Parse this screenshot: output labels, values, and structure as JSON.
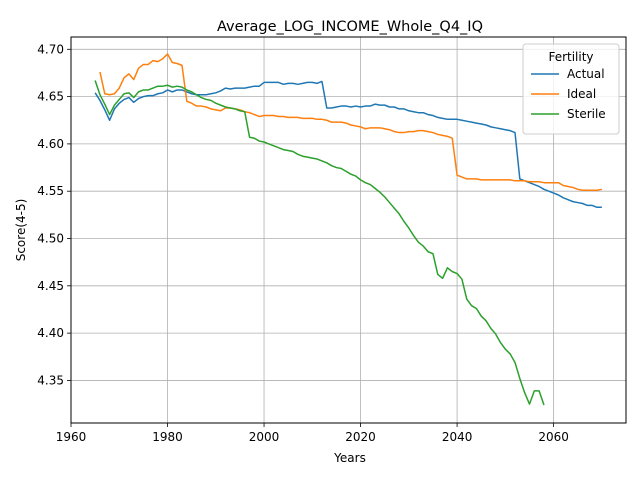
{
  "chart_data": {
    "type": "line",
    "title": "Average_LOG_INCOME_Whole_Q4_IQ",
    "xlabel": "Years",
    "ylabel": "Score(4-5)",
    "xlim": [
      1960,
      2075
    ],
    "ylim": [
      4.305,
      4.713
    ],
    "xticks": [
      1960,
      1980,
      2000,
      2020,
      2040,
      2060
    ],
    "yticks": [
      4.35,
      4.4,
      4.45,
      4.5,
      4.55,
      4.6,
      4.65,
      4.7
    ],
    "grid": true,
    "legend": {
      "title": "Fertility",
      "position": "top-right"
    },
    "series": [
      {
        "name": "Actual",
        "color": "#1f77b4",
        "points": [
          [
            1965,
            4.654
          ],
          [
            1966,
            4.646
          ],
          [
            1967,
            4.636
          ],
          [
            1968,
            4.625
          ],
          [
            1969,
            4.637
          ],
          [
            1970,
            4.643
          ],
          [
            1971,
            4.647
          ],
          [
            1972,
            4.649
          ],
          [
            1973,
            4.644
          ],
          [
            1974,
            4.648
          ],
          [
            1975,
            4.65
          ],
          [
            1976,
            4.651
          ],
          [
            1977,
            4.651
          ],
          [
            1978,
            4.653
          ],
          [
            1979,
            4.654
          ],
          [
            1980,
            4.657
          ],
          [
            1981,
            4.655
          ],
          [
            1982,
            4.657
          ],
          [
            1983,
            4.657
          ],
          [
            1984,
            4.655
          ],
          [
            1985,
            4.653
          ],
          [
            1986,
            4.652
          ],
          [
            1987,
            4.652
          ],
          [
            1988,
            4.652
          ],
          [
            1989,
            4.653
          ],
          [
            1990,
            4.654
          ],
          [
            1991,
            4.656
          ],
          [
            1992,
            4.659
          ],
          [
            1993,
            4.658
          ],
          [
            1994,
            4.659
          ],
          [
            1995,
            4.659
          ],
          [
            1996,
            4.659
          ],
          [
            1997,
            4.66
          ],
          [
            1998,
            4.661
          ],
          [
            1999,
            4.661
          ],
          [
            2000,
            4.665
          ],
          [
            2001,
            4.665
          ],
          [
            2002,
            4.665
          ],
          [
            2003,
            4.665
          ],
          [
            2004,
            4.663
          ],
          [
            2005,
            4.664
          ],
          [
            2006,
            4.664
          ],
          [
            2007,
            4.663
          ],
          [
            2008,
            4.664
          ],
          [
            2009,
            4.665
          ],
          [
            2010,
            4.665
          ],
          [
            2011,
            4.664
          ],
          [
            2012,
            4.666
          ],
          [
            2013,
            4.638
          ],
          [
            2014,
            4.638
          ],
          [
            2015,
            4.639
          ],
          [
            2016,
            4.64
          ],
          [
            2017,
            4.64
          ],
          [
            2018,
            4.639
          ],
          [
            2019,
            4.64
          ],
          [
            2020,
            4.639
          ],
          [
            2021,
            4.64
          ],
          [
            2022,
            4.64
          ],
          [
            2023,
            4.642
          ],
          [
            2024,
            4.641
          ],
          [
            2025,
            4.641
          ],
          [
            2026,
            4.639
          ],
          [
            2027,
            4.639
          ],
          [
            2028,
            4.637
          ],
          [
            2029,
            4.637
          ],
          [
            2030,
            4.635
          ],
          [
            2031,
            4.634
          ],
          [
            2032,
            4.633
          ],
          [
            2033,
            4.633
          ],
          [
            2034,
            4.631
          ],
          [
            2035,
            4.63
          ],
          [
            2036,
            4.628
          ],
          [
            2037,
            4.627
          ],
          [
            2038,
            4.626
          ],
          [
            2039,
            4.626
          ],
          [
            2040,
            4.626
          ],
          [
            2041,
            4.625
          ],
          [
            2042,
            4.624
          ],
          [
            2043,
            4.623
          ],
          [
            2044,
            4.622
          ],
          [
            2045,
            4.621
          ],
          [
            2046,
            4.62
          ],
          [
            2047,
            4.618
          ],
          [
            2048,
            4.617
          ],
          [
            2049,
            4.616
          ],
          [
            2050,
            4.615
          ],
          [
            2051,
            4.614
          ],
          [
            2052,
            4.612
          ],
          [
            2053,
            4.563
          ],
          [
            2054,
            4.561
          ],
          [
            2055,
            4.559
          ],
          [
            2056,
            4.557
          ],
          [
            2057,
            4.555
          ],
          [
            2058,
            4.552
          ],
          [
            2059,
            4.55
          ],
          [
            2060,
            4.548
          ],
          [
            2061,
            4.546
          ],
          [
            2062,
            4.543
          ],
          [
            2063,
            4.541
          ],
          [
            2064,
            4.539
          ],
          [
            2065,
            4.538
          ],
          [
            2066,
            4.537
          ],
          [
            2067,
            4.535
          ],
          [
            2068,
            4.535
          ],
          [
            2069,
            4.533
          ],
          [
            2070,
            4.533
          ]
        ]
      },
      {
        "name": "Ideal",
        "color": "#ff7f0e",
        "points": [
          [
            1966,
            4.676
          ],
          [
            1967,
            4.653
          ],
          [
            1968,
            4.652
          ],
          [
            1969,
            4.653
          ],
          [
            1970,
            4.659
          ],
          [
            1971,
            4.67
          ],
          [
            1972,
            4.674
          ],
          [
            1973,
            4.668
          ],
          [
            1974,
            4.68
          ],
          [
            1975,
            4.684
          ],
          [
            1976,
            4.684
          ],
          [
            1977,
            4.688
          ],
          [
            1978,
            4.687
          ],
          [
            1979,
            4.69
          ],
          [
            1980,
            4.695
          ],
          [
            1981,
            4.686
          ],
          [
            1982,
            4.685
          ],
          [
            1983,
            4.683
          ],
          [
            1984,
            4.645
          ],
          [
            1985,
            4.643
          ],
          [
            1986,
            4.64
          ],
          [
            1987,
            4.64
          ],
          [
            1988,
            4.639
          ],
          [
            1989,
            4.637
          ],
          [
            1990,
            4.636
          ],
          [
            1991,
            4.635
          ],
          [
            1992,
            4.638
          ],
          [
            1993,
            4.638
          ],
          [
            1994,
            4.637
          ],
          [
            1995,
            4.636
          ],
          [
            1996,
            4.634
          ],
          [
            1997,
            4.633
          ],
          [
            1998,
            4.631
          ],
          [
            1999,
            4.629
          ],
          [
            2000,
            4.63
          ],
          [
            2001,
            4.63
          ],
          [
            2002,
            4.63
          ],
          [
            2003,
            4.629
          ],
          [
            2004,
            4.629
          ],
          [
            2005,
            4.628
          ],
          [
            2006,
            4.628
          ],
          [
            2007,
            4.628
          ],
          [
            2008,
            4.627
          ],
          [
            2009,
            4.627
          ],
          [
            2010,
            4.627
          ],
          [
            2011,
            4.626
          ],
          [
            2012,
            4.626
          ],
          [
            2013,
            4.625
          ],
          [
            2014,
            4.623
          ],
          [
            2015,
            4.623
          ],
          [
            2016,
            4.623
          ],
          [
            2017,
            4.622
          ],
          [
            2018,
            4.62
          ],
          [
            2019,
            4.619
          ],
          [
            2020,
            4.618
          ],
          [
            2021,
            4.616
          ],
          [
            2022,
            4.617
          ],
          [
            2023,
            4.617
          ],
          [
            2024,
            4.617
          ],
          [
            2025,
            4.616
          ],
          [
            2026,
            4.615
          ],
          [
            2027,
            4.613
          ],
          [
            2028,
            4.612
          ],
          [
            2029,
            4.612
          ],
          [
            2030,
            4.613
          ],
          [
            2031,
            4.613
          ],
          [
            2032,
            4.614
          ],
          [
            2033,
            4.614
          ],
          [
            2034,
            4.613
          ],
          [
            2035,
            4.612
          ],
          [
            2036,
            4.61
          ],
          [
            2037,
            4.609
          ],
          [
            2038,
            4.608
          ],
          [
            2039,
            4.606
          ],
          [
            2040,
            4.567
          ],
          [
            2041,
            4.565
          ],
          [
            2042,
            4.563
          ],
          [
            2043,
            4.563
          ],
          [
            2044,
            4.563
          ],
          [
            2045,
            4.562
          ],
          [
            2046,
            4.562
          ],
          [
            2047,
            4.562
          ],
          [
            2048,
            4.562
          ],
          [
            2049,
            4.562
          ],
          [
            2050,
            4.562
          ],
          [
            2051,
            4.562
          ],
          [
            2052,
            4.561
          ],
          [
            2053,
            4.561
          ],
          [
            2054,
            4.561
          ],
          [
            2055,
            4.56
          ],
          [
            2056,
            4.56
          ],
          [
            2057,
            4.56
          ],
          [
            2058,
            4.559
          ],
          [
            2059,
            4.559
          ],
          [
            2060,
            4.559
          ],
          [
            2061,
            4.559
          ],
          [
            2062,
            4.556
          ],
          [
            2063,
            4.555
          ],
          [
            2064,
            4.554
          ],
          [
            2065,
            4.552
          ],
          [
            2066,
            4.551
          ],
          [
            2067,
            4.551
          ],
          [
            2068,
            4.551
          ],
          [
            2069,
            4.551
          ],
          [
            2070,
            4.552
          ]
        ]
      },
      {
        "name": "Sterile",
        "color": "#2ca02c",
        "points": [
          [
            1965,
            4.667
          ],
          [
            1966,
            4.652
          ],
          [
            1967,
            4.642
          ],
          [
            1968,
            4.631
          ],
          [
            1969,
            4.641
          ],
          [
            1970,
            4.647
          ],
          [
            1971,
            4.653
          ],
          [
            1972,
            4.654
          ],
          [
            1973,
            4.649
          ],
          [
            1974,
            4.655
          ],
          [
            1975,
            4.657
          ],
          [
            1976,
            4.657
          ],
          [
            1977,
            4.659
          ],
          [
            1978,
            4.661
          ],
          [
            1979,
            4.661
          ],
          [
            1980,
            4.662
          ],
          [
            1981,
            4.66
          ],
          [
            1982,
            4.661
          ],
          [
            1983,
            4.66
          ],
          [
            1984,
            4.657
          ],
          [
            1985,
            4.655
          ],
          [
            1986,
            4.652
          ],
          [
            1987,
            4.649
          ],
          [
            1988,
            4.647
          ],
          [
            1989,
            4.646
          ],
          [
            1990,
            4.643
          ],
          [
            1991,
            4.641
          ],
          [
            1992,
            4.639
          ],
          [
            1993,
            4.638
          ],
          [
            1994,
            4.637
          ],
          [
            1995,
            4.635
          ],
          [
            1996,
            4.634
          ],
          [
            1997,
            4.607
          ],
          [
            1998,
            4.606
          ],
          [
            1999,
            4.603
          ],
          [
            2000,
            4.602
          ],
          [
            2001,
            4.6
          ],
          [
            2002,
            4.598
          ],
          [
            2003,
            4.596
          ],
          [
            2004,
            4.594
          ],
          [
            2005,
            4.593
          ],
          [
            2006,
            4.592
          ],
          [
            2007,
            4.589
          ],
          [
            2008,
            4.587
          ],
          [
            2009,
            4.586
          ],
          [
            2010,
            4.585
          ],
          [
            2011,
            4.584
          ],
          [
            2012,
            4.582
          ],
          [
            2013,
            4.58
          ],
          [
            2014,
            4.577
          ],
          [
            2015,
            4.575
          ],
          [
            2016,
            4.574
          ],
          [
            2017,
            4.571
          ],
          [
            2018,
            4.568
          ],
          [
            2019,
            4.566
          ],
          [
            2020,
            4.562
          ],
          [
            2021,
            4.559
          ],
          [
            2022,
            4.557
          ],
          [
            2023,
            4.553
          ],
          [
            2024,
            4.549
          ],
          [
            2025,
            4.544
          ],
          [
            2026,
            4.538
          ],
          [
            2027,
            4.532
          ],
          [
            2028,
            4.526
          ],
          [
            2029,
            4.518
          ],
          [
            2030,
            4.511
          ],
          [
            2031,
            4.503
          ],
          [
            2032,
            4.496
          ],
          [
            2033,
            4.492
          ],
          [
            2034,
            4.486
          ],
          [
            2035,
            4.484
          ],
          [
            2036,
            4.462
          ],
          [
            2037,
            4.458
          ],
          [
            2038,
            4.469
          ],
          [
            2039,
            4.465
          ],
          [
            2040,
            4.463
          ],
          [
            2041,
            4.457
          ],
          [
            2042,
            4.436
          ],
          [
            2043,
            4.429
          ],
          [
            2044,
            4.426
          ],
          [
            2045,
            4.418
          ],
          [
            2046,
            4.413
          ],
          [
            2047,
            4.405
          ],
          [
            2048,
            4.399
          ],
          [
            2049,
            4.39
          ],
          [
            2050,
            4.383
          ],
          [
            2051,
            4.378
          ],
          [
            2052,
            4.369
          ],
          [
            2053,
            4.352
          ],
          [
            2054,
            4.337
          ],
          [
            2055,
            4.325
          ],
          [
            2056,
            4.339
          ],
          [
            2057,
            4.339
          ],
          [
            2058,
            4.324
          ]
        ]
      }
    ]
  }
}
